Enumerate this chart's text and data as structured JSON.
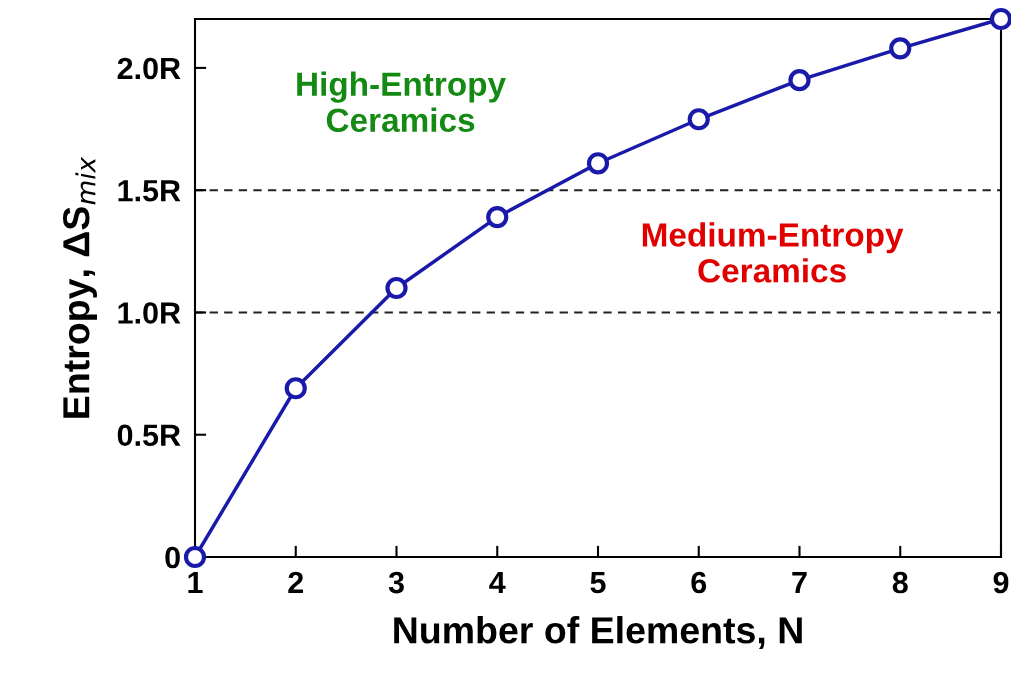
{
  "chart_data": {
    "type": "line",
    "xlabel": "Number of Elements, N",
    "ylabel": "Entropy, ΔS$_{mix}$",
    "x": [
      1,
      2,
      3,
      4,
      5,
      6,
      7,
      8,
      9
    ],
    "series": [
      {
        "color": "#1a1aaa",
        "values": [
          0,
          0.69,
          1.1,
          1.39,
          1.61,
          1.79,
          1.95,
          2.08,
          2.2
        ]
      }
    ],
    "marker": "circle",
    "line_style": "solid",
    "xlim": [
      1,
      9
    ],
    "xticks": [
      1,
      2,
      3,
      4,
      5,
      6,
      7,
      8,
      9
    ],
    "ylim": [
      0,
      2.2
    ],
    "yticks": [
      0,
      {
        "value": 0.5,
        "label": "0.5R"
      },
      {
        "value": 1.0,
        "label": "1.0R"
      },
      {
        "value": 1.5,
        "label": "1.5R"
      },
      {
        "value": 2.0,
        "label": "2.0R"
      }
    ],
    "ref_lines": [
      {
        "axis": "y",
        "value": 1.0,
        "color": "#222222",
        "line_style": "dashed"
      },
      {
        "axis": "y",
        "value": 1.5,
        "color": "#222222",
        "line_style": "dashed"
      }
    ],
    "annotations": [
      "High-Entropy\nCeramics",
      "Medium-Entropy\nCeramics"
    ],
    "grid": false,
    "legend": false
  }
}
